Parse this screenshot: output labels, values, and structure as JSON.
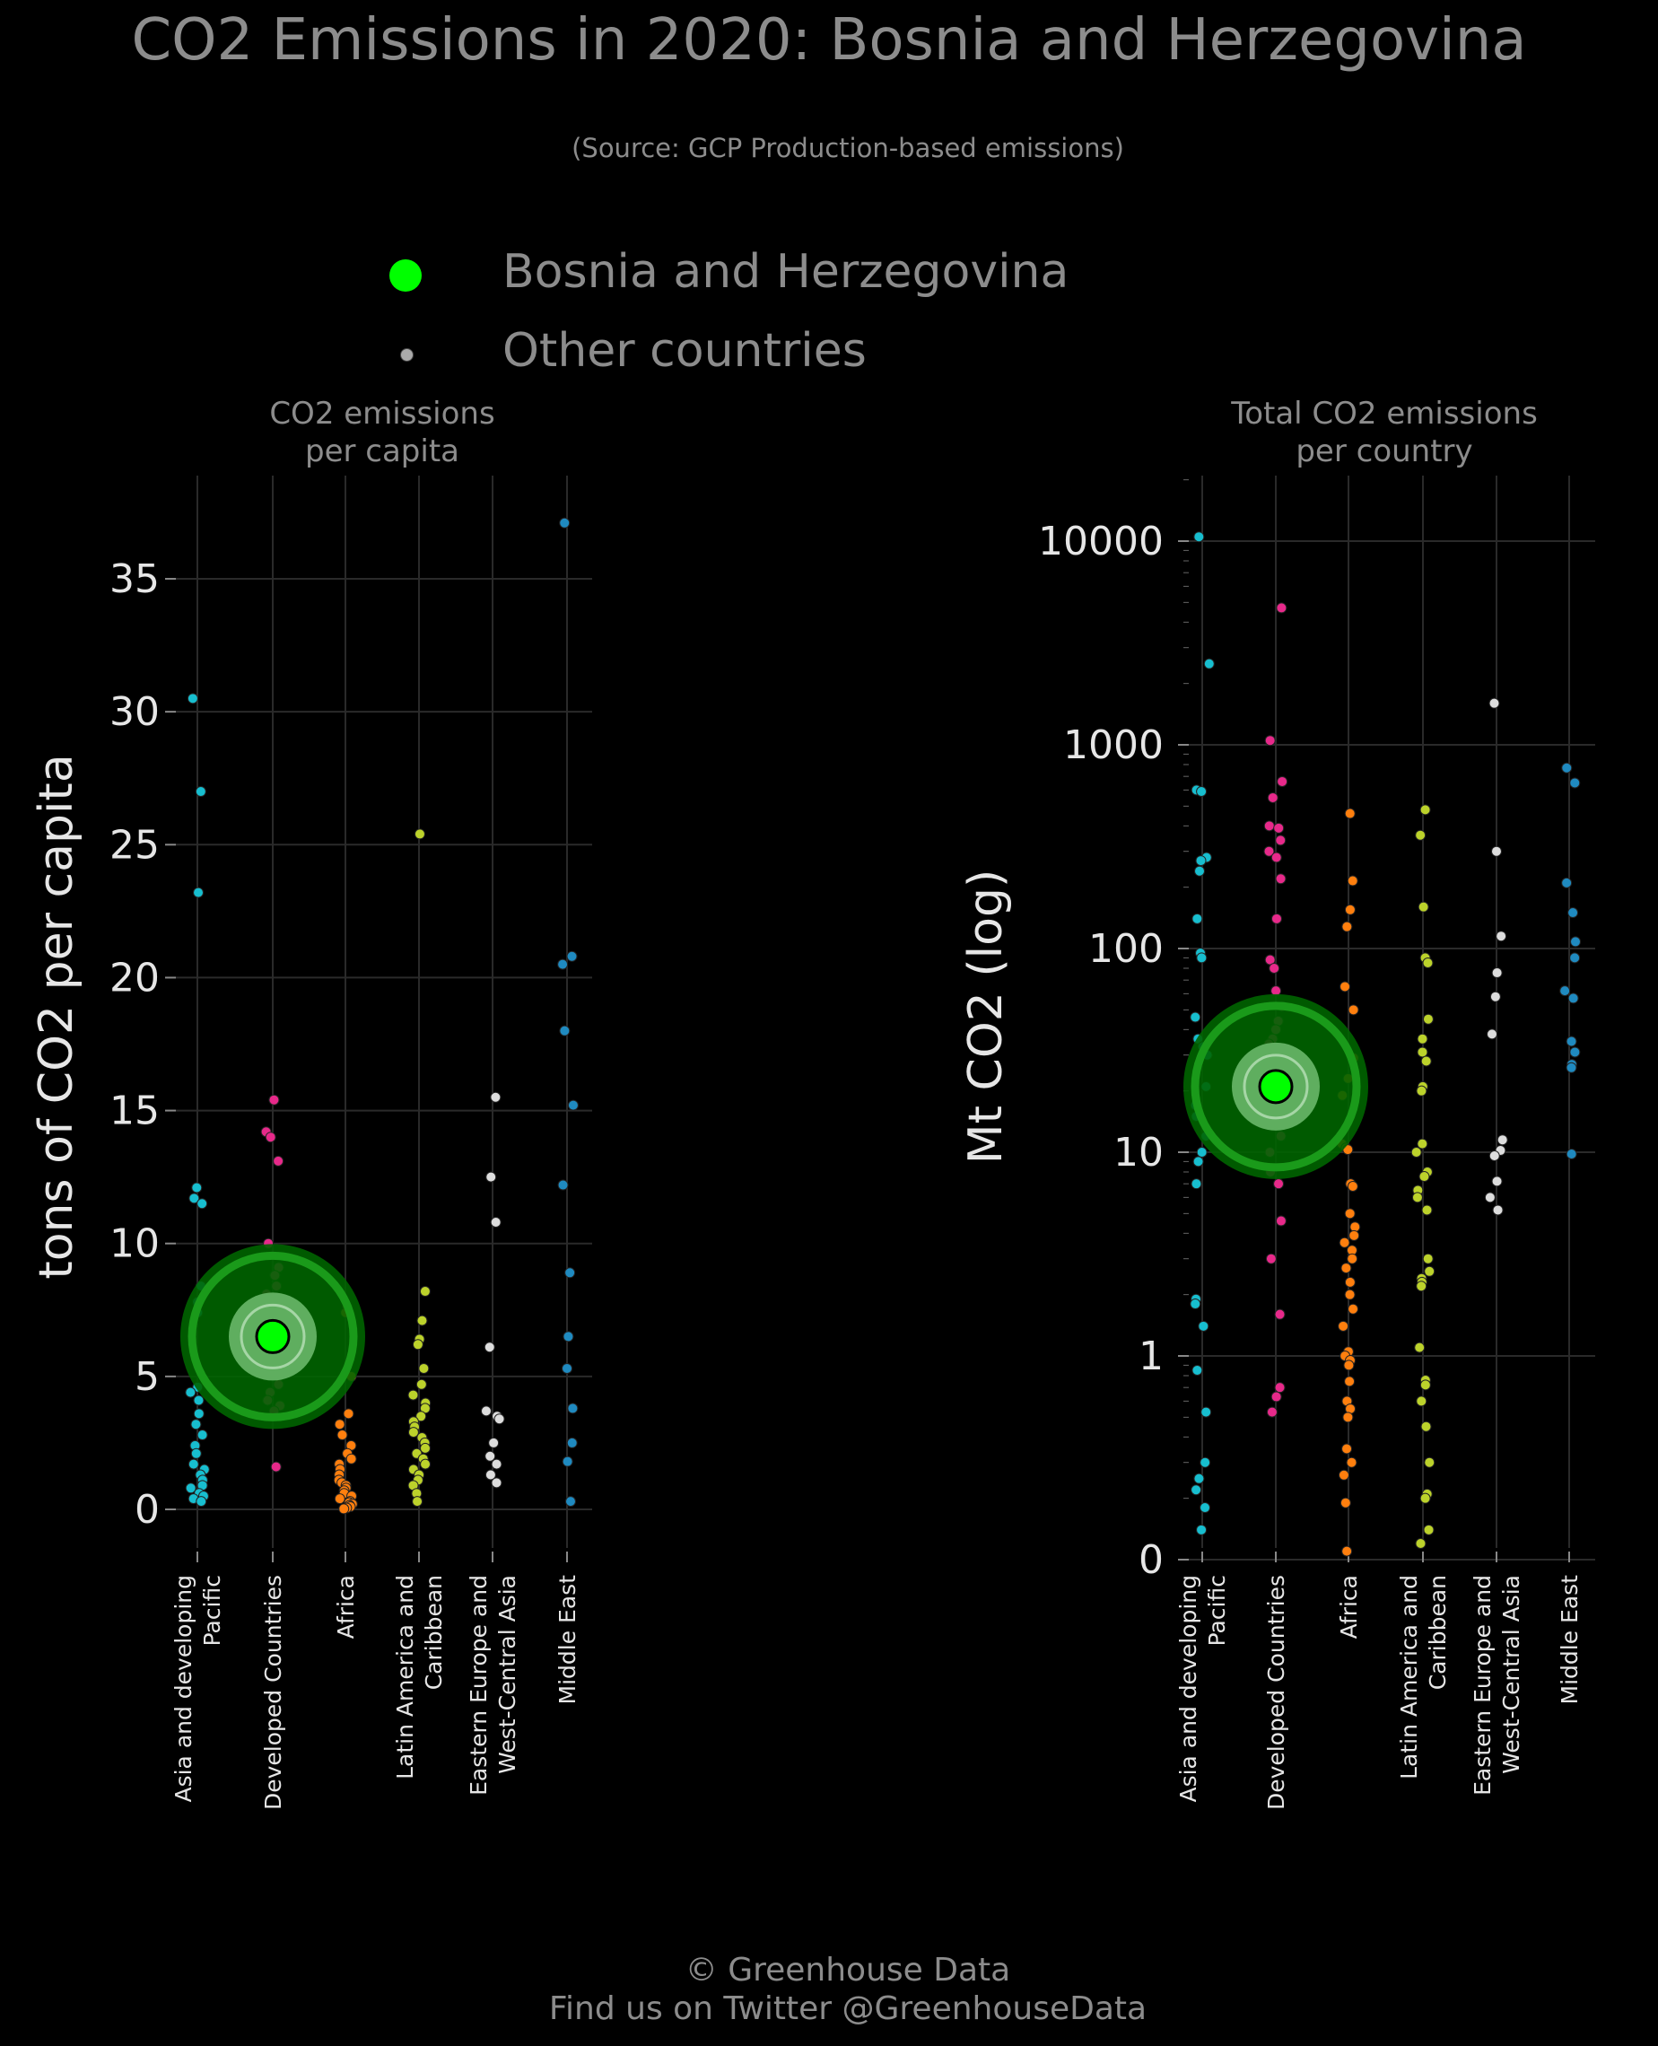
{
  "title": "CO2 Emissions in 2020: Bosnia and Herzegovina",
  "subtitle": "(Source: GCP Production-based emissions)",
  "legend": {
    "highlight_label": "Bosnia and Herzegovina",
    "other_label": "Other countries",
    "highlight_color": "#00ff00",
    "other_color": "#aaaaaa"
  },
  "footer": {
    "line1": "© Greenhouse Data",
    "line2": "Find us on Twitter @GreenhouseData"
  },
  "chart_data": [
    {
      "type": "scatter",
      "title": "CO2 emissions\nper capita",
      "ylabel": "tons of CO2 per capita",
      "ylim": [
        0,
        38
      ],
      "yticks": [
        0,
        5,
        10,
        15,
        20,
        25,
        30,
        35
      ],
      "ytick_labels": [
        "0",
        "5",
        "10",
        "15",
        "20",
        "25",
        "30",
        "35"
      ],
      "categories": [
        "Asia and developing\nPacific",
        "Developed Countries",
        "Africa",
        "Latin America and\nCaribbean",
        "Eastern Europe and\nWest-Central Asia",
        "Middle East"
      ],
      "colors": [
        "#17becf",
        "#e7298a",
        "#ff7f0e",
        "#bcd22b",
        "#dddddd",
        "#1f8ac0"
      ],
      "highlight": {
        "category": "Developed Countries",
        "value": 6.5
      },
      "series": [
        {
          "values": [
            30.5,
            27.0,
            23.2,
            12.1,
            11.7,
            11.5,
            8.4,
            7.8,
            7.4,
            4.6,
            4.4,
            4.1,
            3.6,
            3.2,
            2.8,
            2.4,
            2.1,
            1.7,
            1.5,
            1.3,
            1.1,
            0.9,
            0.8,
            0.6,
            0.5,
            0.4,
            0.3
          ]
        },
        {
          "values": [
            15.4,
            14.2,
            14.0,
            13.1,
            10.0,
            9.1,
            8.8,
            8.4,
            8.1,
            7.9,
            7.6,
            7.2,
            6.9,
            6.6,
            6.2,
            5.9,
            5.6,
            5.3,
            5.0,
            4.7,
            4.4,
            4.1,
            3.9,
            3.7,
            1.6
          ]
        },
        {
          "values": [
            7.6,
            7.4,
            5.0,
            3.6,
            3.2,
            2.8,
            2.4,
            2.1,
            1.9,
            1.7,
            1.5,
            1.3,
            1.1,
            1.0,
            0.9,
            0.8,
            0.7,
            0.6,
            0.5,
            0.4,
            0.3,
            0.25,
            0.2,
            0.15,
            0.1,
            0.05,
            0.02
          ]
        },
        {
          "values": [
            25.4,
            8.2,
            7.1,
            6.4,
            6.2,
            5.3,
            4.7,
            4.3,
            4.0,
            3.8,
            3.5,
            3.3,
            3.1,
            2.9,
            2.7,
            2.5,
            2.3,
            2.1,
            1.9,
            1.7,
            1.5,
            1.3,
            1.1,
            0.9,
            0.6,
            0.3
          ]
        },
        {
          "values": [
            15.5,
            12.5,
            10.8,
            6.1,
            3.7,
            3.5,
            3.4,
            2.5,
            2.0,
            1.7,
            1.3,
            1.0
          ]
        },
        {
          "values": [
            37.1,
            20.8,
            20.5,
            18.0,
            15.2,
            12.2,
            8.9,
            6.5,
            5.3,
            3.8,
            2.5,
            1.8,
            0.3
          ]
        }
      ]
    },
    {
      "type": "scatter",
      "title": "Total CO2 emissions\nper country",
      "ylabel": "Mt CO2 (log)",
      "yscale": "log",
      "ylim": [
        0.1,
        20000
      ],
      "yticks": [
        0.1,
        1,
        10,
        100,
        1000,
        10000
      ],
      "ytick_labels": [
        "0",
        "1",
        "10",
        "100",
        "1000",
        "10000"
      ],
      "categories": [
        "Asia and developing\nPacific",
        "Developed Countries",
        "Africa",
        "Latin America and\nCaribbean",
        "Eastern Europe and\nWest-Central Asia",
        "Middle East"
      ],
      "colors": [
        "#17becf",
        "#e7298a",
        "#ff7f0e",
        "#bcd22b",
        "#dddddd",
        "#1f8ac0"
      ],
      "highlight": {
        "category": "Developed Countries",
        "value": 21
      },
      "series": [
        {
          "values": [
            10500,
            2500,
            600,
            590,
            280,
            270,
            240,
            140,
            95,
            90,
            46,
            36,
            33,
            30,
            21,
            17,
            15,
            12,
            10,
            9,
            7,
            1.9,
            1.8,
            1.4,
            0.85,
            0.53,
            0.3,
            0.25,
            0.22,
            0.18,
            0.14
          ]
        },
        {
          "values": [
            4700,
            1050,
            660,
            550,
            400,
            390,
            340,
            300,
            280,
            220,
            140,
            88,
            80,
            62,
            52,
            44,
            40,
            36,
            34,
            30,
            24,
            18,
            15,
            12,
            10,
            8,
            7,
            4.6,
            3,
            1.6,
            0.7,
            0.63,
            0.53
          ]
        },
        {
          "values": [
            460,
            215,
            155,
            128,
            65,
            50,
            29,
            23,
            19,
            11,
            10.5,
            10.3,
            7,
            6.8,
            5,
            4.3,
            3.9,
            3.6,
            3.3,
            3,
            2.7,
            2.3,
            2,
            1.7,
            1.4,
            1.05,
            1,
            0.95,
            0.9,
            0.75,
            0.6,
            0.55,
            0.5,
            0.35,
            0.3,
            0.26,
            0.19,
            0.11
          ]
        },
        {
          "values": [
            480,
            360,
            160,
            90,
            85,
            45,
            36,
            31,
            28,
            21,
            20,
            11,
            10,
            8,
            7.6,
            6.5,
            6,
            5.2,
            3,
            2.6,
            2.4,
            2.3,
            2.2,
            1.1,
            0.76,
            0.72,
            0.6,
            0.45,
            0.3,
            0.21,
            0.2,
            0.14,
            0.12
          ]
        },
        {
          "values": [
            1600,
            300,
            115,
            76,
            58,
            38,
            11.5,
            10.2,
            9.6,
            7.2,
            6,
            5.2
          ]
        },
        {
          "values": [
            650,
            770,
            210,
            150,
            108,
            90,
            62,
            57,
            35,
            31,
            27,
            26,
            9.8
          ]
        }
      ]
    }
  ]
}
